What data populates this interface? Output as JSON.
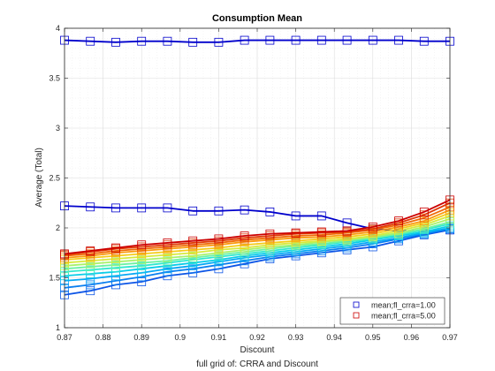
{
  "chart_data": {
    "type": "line",
    "title": "Consumption Mean",
    "xlabel": "Discount",
    "ylabel": "Average (Total)",
    "caption": "full grid of: CRRA and Discount",
    "xlim": [
      0.87,
      0.97
    ],
    "ylim": [
      1,
      4
    ],
    "grid": true,
    "x_ticks": [
      "0.87",
      "0.88",
      "0.89",
      "0.9",
      "0.91",
      "0.92",
      "0.93",
      "0.94",
      "0.95",
      "0.96",
      "0.97"
    ],
    "y_ticks": [
      "1",
      "1.5",
      "2",
      "2.5",
      "3",
      "3.5",
      "4"
    ],
    "legend": {
      "location": "bottom-right",
      "entries": [
        {
          "label": "mean;fl_crra=1.00",
          "color": "#0000cc"
        },
        {
          "label": "mean;fl_crra=5.00",
          "color": "#cc0000"
        }
      ]
    },
    "x": [
      0.87,
      0.8767,
      0.8833,
      0.89,
      0.8967,
      0.9033,
      0.91,
      0.9167,
      0.9233,
      0.93,
      0.9367,
      0.9433,
      0.95,
      0.9567,
      0.9633,
      0.97
    ],
    "series": [
      {
        "color": "#0000cc",
        "values": [
          3.88,
          3.87,
          3.86,
          3.87,
          3.87,
          3.86,
          3.86,
          3.88,
          3.88,
          3.88,
          3.88,
          3.88,
          3.88,
          3.88,
          3.87,
          3.87
        ]
      },
      {
        "color": "#0000cc",
        "values": [
          2.22,
          2.21,
          2.2,
          2.2,
          2.2,
          2.17,
          2.17,
          2.18,
          2.16,
          2.12,
          2.12,
          2.05,
          1.99,
          1.97,
          1.97,
          1.98
        ]
      },
      {
        "color": "#0d55e6",
        "values": [
          1.33,
          1.37,
          1.43,
          1.46,
          1.52,
          1.55,
          1.59,
          1.64,
          1.69,
          1.72,
          1.75,
          1.78,
          1.81,
          1.87,
          1.93,
          1.98
        ]
      },
      {
        "color": "#0a7ff0",
        "values": [
          1.4,
          1.43,
          1.47,
          1.51,
          1.56,
          1.59,
          1.63,
          1.67,
          1.71,
          1.74,
          1.77,
          1.8,
          1.84,
          1.89,
          1.94,
          1.99
        ]
      },
      {
        "color": "#07a8f5",
        "values": [
          1.47,
          1.49,
          1.52,
          1.55,
          1.59,
          1.62,
          1.66,
          1.7,
          1.73,
          1.76,
          1.79,
          1.82,
          1.86,
          1.9,
          1.95,
          2.0
        ]
      },
      {
        "color": "#0acde8",
        "values": [
          1.52,
          1.54,
          1.56,
          1.59,
          1.62,
          1.65,
          1.68,
          1.72,
          1.75,
          1.78,
          1.81,
          1.84,
          1.88,
          1.92,
          1.96,
          2.02
        ]
      },
      {
        "color": "#30e8cf",
        "values": [
          1.56,
          1.58,
          1.6,
          1.62,
          1.65,
          1.68,
          1.71,
          1.74,
          1.77,
          1.8,
          1.83,
          1.86,
          1.89,
          1.93,
          1.98,
          2.04
        ]
      },
      {
        "color": "#6cf2a4",
        "values": [
          1.59,
          1.61,
          1.63,
          1.65,
          1.67,
          1.7,
          1.73,
          1.76,
          1.79,
          1.82,
          1.84,
          1.87,
          1.9,
          1.94,
          1.99,
          2.06
        ]
      },
      {
        "color": "#a8f26c",
        "values": [
          1.62,
          1.64,
          1.66,
          1.68,
          1.7,
          1.72,
          1.75,
          1.78,
          1.81,
          1.83,
          1.86,
          1.88,
          1.91,
          1.95,
          2.01,
          2.09
        ]
      },
      {
        "color": "#d6ea3c",
        "values": [
          1.65,
          1.67,
          1.69,
          1.71,
          1.73,
          1.75,
          1.78,
          1.8,
          1.83,
          1.85,
          1.87,
          1.89,
          1.92,
          1.97,
          2.03,
          2.12
        ]
      },
      {
        "color": "#f5cc1a",
        "values": [
          1.68,
          1.7,
          1.72,
          1.74,
          1.76,
          1.78,
          1.8,
          1.83,
          1.85,
          1.87,
          1.89,
          1.91,
          1.94,
          1.99,
          2.05,
          2.15
        ]
      },
      {
        "color": "#fa9a0d",
        "values": [
          1.7,
          1.72,
          1.75,
          1.77,
          1.79,
          1.81,
          1.83,
          1.86,
          1.88,
          1.9,
          1.91,
          1.93,
          1.96,
          2.01,
          2.07,
          2.18
        ]
      },
      {
        "color": "#f06a08",
        "values": [
          1.72,
          1.74,
          1.77,
          1.79,
          1.81,
          1.83,
          1.85,
          1.88,
          1.9,
          1.92,
          1.93,
          1.95,
          1.98,
          2.03,
          2.1,
          2.21
        ]
      },
      {
        "color": "#e03a05",
        "values": [
          1.73,
          1.76,
          1.79,
          1.81,
          1.83,
          1.85,
          1.87,
          1.9,
          1.92,
          1.94,
          1.95,
          1.96,
          1.99,
          2.05,
          2.13,
          2.25
        ]
      },
      {
        "color": "#cc0000",
        "values": [
          1.74,
          1.77,
          1.8,
          1.83,
          1.85,
          1.87,
          1.89,
          1.92,
          1.94,
          1.95,
          1.96,
          1.97,
          2.01,
          2.07,
          2.16,
          2.28
        ]
      }
    ]
  }
}
